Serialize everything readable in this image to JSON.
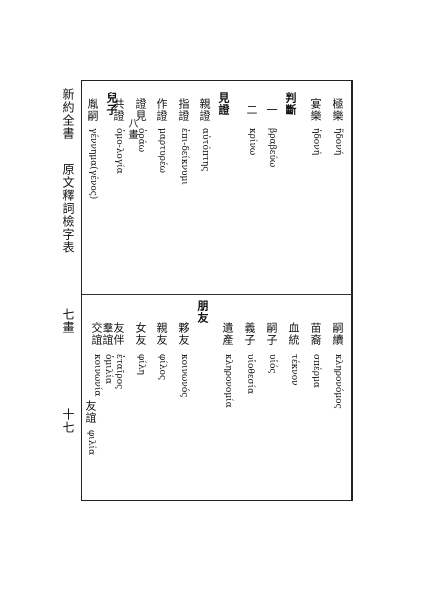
{
  "header": {
    "book_title": "新約全書",
    "index_title": "原文釋詞檢字表",
    "stroke_section": "七畫",
    "page_number": "十七"
  },
  "upper_entries": [
    {
      "word": "極樂",
      "greek": "ἥδονή"
    },
    {
      "word": "宴樂",
      "greek": "ἡδονή"
    },
    {
      "word": "判斷",
      "greek": ""
    },
    {
      "word": "一",
      "greek": "βραβεύω"
    },
    {
      "word": "二",
      "greek": "κρίνω"
    },
    {
      "word": "見證",
      "greek": ""
    },
    {
      "word": "親證",
      "greek": "αὐτόπτης"
    },
    {
      "word": "指證",
      "greek": "ἐπι-δείκνυμι"
    },
    {
      "word": "作證",
      "greek": "μαρτυρέω"
    },
    {
      "word": "證見",
      "greek": "ὁράω"
    },
    {
      "word": "共證",
      "greek": "ὁμο-λογία"
    },
    {
      "word": "八畫",
      "greek": ""
    },
    {
      "word": "兒子",
      "greek": ""
    },
    {
      "word": "胤嗣",
      "greek": "γέννημα(γένος)"
    }
  ],
  "lower_entries": [
    {
      "word": "嗣續",
      "greek": "κληρονόμος"
    },
    {
      "word": "苗裔",
      "greek": "σπέρμα"
    },
    {
      "word": "血統",
      "greek": "τέκνον"
    },
    {
      "word": "嗣子",
      "greek": "υἱός"
    },
    {
      "word": "義子",
      "greek": "υἱοθεσία"
    },
    {
      "word": "遺產",
      "greek": "κληρονομία"
    },
    {
      "word": "朋友",
      "greek": ""
    },
    {
      "word": "夥友",
      "greek": "κοινωνός"
    },
    {
      "word": "親友",
      "greek": "φίλος"
    },
    {
      "word": "女友",
      "greek": "φίλη"
    },
    {
      "word": "友伴",
      "greek": "ἑταῖρος"
    },
    {
      "word": "羣誼",
      "greek": "ὁμιλία"
    },
    {
      "word": "交誼",
      "greek": "κοινωνία"
    },
    {
      "word": "友誼",
      "greek": "φιλία"
    }
  ]
}
